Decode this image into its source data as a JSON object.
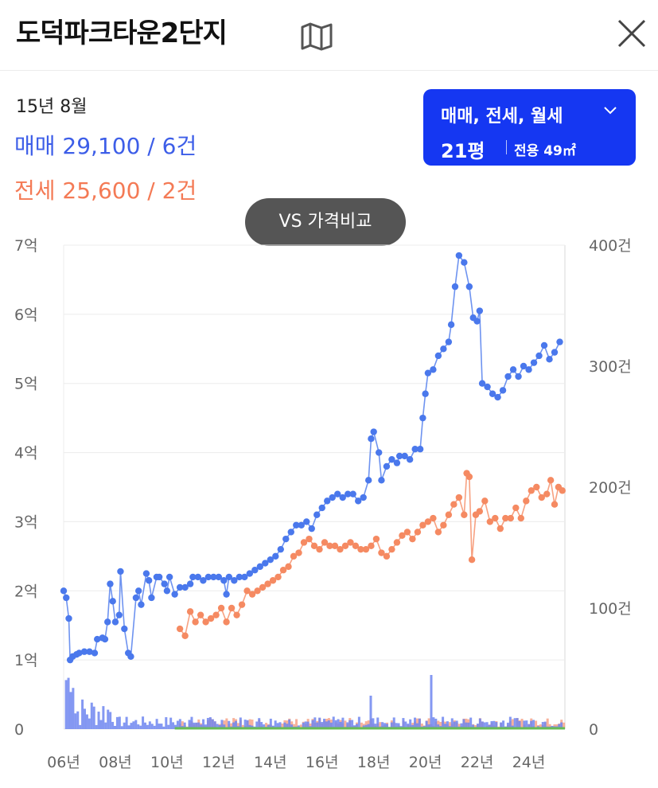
{
  "header": {
    "title": "도덕파크타운2단지",
    "map_icon": "map-icon",
    "close_icon": "close-icon"
  },
  "summary": {
    "date": "15년 8월",
    "sale": "매매 29,100 / 6건",
    "jeonse": "전세 25,600 / 2건"
  },
  "filter": {
    "types": "매매, 전세, 월세",
    "pyeong": "21평",
    "area": "전용 49㎡"
  },
  "compare_button": "VS 가격비교",
  "colors": {
    "sale": "#4a78ec",
    "jeonse": "#f58a62",
    "wolse": "#66bb55",
    "button": "#1537f2"
  },
  "chart_data": {
    "type": "line",
    "y_left": {
      "ticks": [
        "0",
        "1억",
        "2억",
        "3억",
        "4억",
        "5억",
        "6억",
        "7억"
      ],
      "min": 0,
      "max": 7
    },
    "y_right": {
      "ticks": [
        "0",
        "100건",
        "200건",
        "300건",
        "400건"
      ],
      "min": 0,
      "max": 400
    },
    "x": {
      "ticks": [
        "06년",
        "08년",
        "10년",
        "12년",
        "14년",
        "16년",
        "18년",
        "20년",
        "22년",
        "24년"
      ],
      "min": 2006,
      "max": 2025.4
    },
    "series": [
      {
        "key": "sale",
        "points": [
          [
            2006.0,
            2.0
          ],
          [
            2006.1,
            1.9
          ],
          [
            2006.2,
            1.6
          ],
          [
            2006.25,
            1.0
          ],
          [
            2006.35,
            1.05
          ],
          [
            2006.5,
            1.08
          ],
          [
            2006.6,
            1.1
          ],
          [
            2006.8,
            1.12
          ],
          [
            2007.0,
            1.12
          ],
          [
            2007.2,
            1.1
          ],
          [
            2007.3,
            1.3
          ],
          [
            2007.5,
            1.32
          ],
          [
            2007.6,
            1.3
          ],
          [
            2007.7,
            1.55
          ],
          [
            2007.8,
            2.1
          ],
          [
            2007.9,
            1.85
          ],
          [
            2008.0,
            1.55
          ],
          [
            2008.15,
            1.65
          ],
          [
            2008.2,
            2.28
          ],
          [
            2008.35,
            1.45
          ],
          [
            2008.5,
            1.1
          ],
          [
            2008.6,
            1.05
          ],
          [
            2008.8,
            1.9
          ],
          [
            2008.9,
            2.0
          ],
          [
            2009.0,
            1.8
          ],
          [
            2009.2,
            2.25
          ],
          [
            2009.3,
            2.15
          ],
          [
            2009.4,
            1.9
          ],
          [
            2009.6,
            2.2
          ],
          [
            2009.7,
            2.2
          ],
          [
            2009.9,
            2.1
          ],
          [
            2010.0,
            2.0
          ],
          [
            2010.1,
            2.2
          ],
          [
            2010.3,
            1.95
          ],
          [
            2010.5,
            2.05
          ],
          [
            2010.7,
            2.05
          ],
          [
            2010.9,
            2.1
          ],
          [
            2011.0,
            2.2
          ],
          [
            2011.2,
            2.2
          ],
          [
            2011.4,
            2.15
          ],
          [
            2011.6,
            2.2
          ],
          [
            2011.8,
            2.2
          ],
          [
            2012.0,
            2.2
          ],
          [
            2012.2,
            2.15
          ],
          [
            2012.3,
            1.95
          ],
          [
            2012.4,
            2.2
          ],
          [
            2012.6,
            2.15
          ],
          [
            2012.8,
            2.2
          ],
          [
            2013.0,
            2.2
          ],
          [
            2013.2,
            2.25
          ],
          [
            2013.4,
            2.3
          ],
          [
            2013.6,
            2.35
          ],
          [
            2013.8,
            2.4
          ],
          [
            2014.0,
            2.45
          ],
          [
            2014.2,
            2.5
          ],
          [
            2014.4,
            2.6
          ],
          [
            2014.6,
            2.75
          ],
          [
            2014.8,
            2.85
          ],
          [
            2015.0,
            2.95
          ],
          [
            2015.2,
            2.95
          ],
          [
            2015.4,
            3.0
          ],
          [
            2015.6,
            2.9
          ],
          [
            2015.8,
            3.1
          ],
          [
            2016.0,
            3.2
          ],
          [
            2016.2,
            3.3
          ],
          [
            2016.4,
            3.35
          ],
          [
            2016.6,
            3.4
          ],
          [
            2016.8,
            3.35
          ],
          [
            2017.0,
            3.4
          ],
          [
            2017.2,
            3.4
          ],
          [
            2017.4,
            3.3
          ],
          [
            2017.6,
            3.35
          ],
          [
            2017.8,
            3.6
          ],
          [
            2017.9,
            4.2
          ],
          [
            2018.0,
            4.3
          ],
          [
            2018.2,
            4.0
          ],
          [
            2018.3,
            3.6
          ],
          [
            2018.5,
            3.8
          ],
          [
            2018.7,
            3.9
          ],
          [
            2018.9,
            3.85
          ],
          [
            2019.0,
            3.95
          ],
          [
            2019.2,
            3.95
          ],
          [
            2019.4,
            3.9
          ],
          [
            2019.6,
            4.05
          ],
          [
            2019.8,
            4.05
          ],
          [
            2019.9,
            4.5
          ],
          [
            2020.0,
            4.85
          ],
          [
            2020.1,
            5.15
          ],
          [
            2020.3,
            5.2
          ],
          [
            2020.5,
            5.4
          ],
          [
            2020.7,
            5.5
          ],
          [
            2020.9,
            5.6
          ],
          [
            2021.0,
            5.85
          ],
          [
            2021.15,
            6.4
          ],
          [
            2021.3,
            6.85
          ],
          [
            2021.5,
            6.75
          ],
          [
            2021.7,
            6.4
          ],
          [
            2021.85,
            5.95
          ],
          [
            2022.0,
            5.9
          ],
          [
            2022.1,
            6.05
          ],
          [
            2022.2,
            5.0
          ],
          [
            2022.4,
            4.95
          ],
          [
            2022.6,
            4.85
          ],
          [
            2022.8,
            4.8
          ],
          [
            2023.0,
            4.9
          ],
          [
            2023.2,
            5.1
          ],
          [
            2023.4,
            5.2
          ],
          [
            2023.6,
            5.1
          ],
          [
            2023.8,
            5.25
          ],
          [
            2024.0,
            5.2
          ],
          [
            2024.2,
            5.3
          ],
          [
            2024.4,
            5.4
          ],
          [
            2024.6,
            5.55
          ],
          [
            2024.8,
            5.35
          ],
          [
            2025.0,
            5.45
          ],
          [
            2025.2,
            5.6
          ]
        ]
      },
      {
        "key": "jeonse",
        "points": [
          [
            2010.5,
            1.45
          ],
          [
            2010.7,
            1.35
          ],
          [
            2010.9,
            1.7
          ],
          [
            2011.1,
            1.55
          ],
          [
            2011.3,
            1.65
          ],
          [
            2011.5,
            1.55
          ],
          [
            2011.7,
            1.6
          ],
          [
            2011.9,
            1.65
          ],
          [
            2012.1,
            1.75
          ],
          [
            2012.3,
            1.55
          ],
          [
            2012.5,
            1.75
          ],
          [
            2012.7,
            1.65
          ],
          [
            2012.9,
            1.8
          ],
          [
            2013.1,
            2.0
          ],
          [
            2013.3,
            1.95
          ],
          [
            2013.5,
            2.0
          ],
          [
            2013.7,
            2.05
          ],
          [
            2013.9,
            2.1
          ],
          [
            2014.1,
            2.15
          ],
          [
            2014.3,
            2.2
          ],
          [
            2014.5,
            2.3
          ],
          [
            2014.7,
            2.35
          ],
          [
            2014.9,
            2.5
          ],
          [
            2015.1,
            2.55
          ],
          [
            2015.3,
            2.7
          ],
          [
            2015.5,
            2.75
          ],
          [
            2015.7,
            2.65
          ],
          [
            2015.9,
            2.6
          ],
          [
            2016.1,
            2.7
          ],
          [
            2016.3,
            2.65
          ],
          [
            2016.5,
            2.65
          ],
          [
            2016.7,
            2.6
          ],
          [
            2016.9,
            2.65
          ],
          [
            2017.1,
            2.7
          ],
          [
            2017.3,
            2.65
          ],
          [
            2017.5,
            2.6
          ],
          [
            2017.7,
            2.6
          ],
          [
            2017.9,
            2.65
          ],
          [
            2018.1,
            2.75
          ],
          [
            2018.3,
            2.55
          ],
          [
            2018.5,
            2.5
          ],
          [
            2018.7,
            2.6
          ],
          [
            2018.9,
            2.7
          ],
          [
            2019.1,
            2.8
          ],
          [
            2019.3,
            2.85
          ],
          [
            2019.5,
            2.75
          ],
          [
            2019.7,
            2.85
          ],
          [
            2019.9,
            2.95
          ],
          [
            2020.1,
            3.0
          ],
          [
            2020.3,
            3.05
          ],
          [
            2020.5,
            2.85
          ],
          [
            2020.7,
            2.95
          ],
          [
            2020.9,
            3.1
          ],
          [
            2021.1,
            3.25
          ],
          [
            2021.3,
            3.35
          ],
          [
            2021.5,
            3.1
          ],
          [
            2021.6,
            3.7
          ],
          [
            2021.7,
            3.65
          ],
          [
            2021.8,
            2.45
          ],
          [
            2021.95,
            3.1
          ],
          [
            2022.1,
            3.15
          ],
          [
            2022.3,
            3.3
          ],
          [
            2022.5,
            3.0
          ],
          [
            2022.7,
            3.05
          ],
          [
            2022.9,
            2.9
          ],
          [
            2023.1,
            3.05
          ],
          [
            2023.3,
            3.05
          ],
          [
            2023.5,
            3.2
          ],
          [
            2023.7,
            3.05
          ],
          [
            2023.9,
            3.3
          ],
          [
            2024.1,
            3.45
          ],
          [
            2024.3,
            3.5
          ],
          [
            2024.5,
            3.35
          ],
          [
            2024.7,
            3.4
          ],
          [
            2024.85,
            3.6
          ],
          [
            2025.0,
            3.25
          ],
          [
            2025.15,
            3.5
          ],
          [
            2025.3,
            3.45
          ]
        ]
      }
    ]
  }
}
